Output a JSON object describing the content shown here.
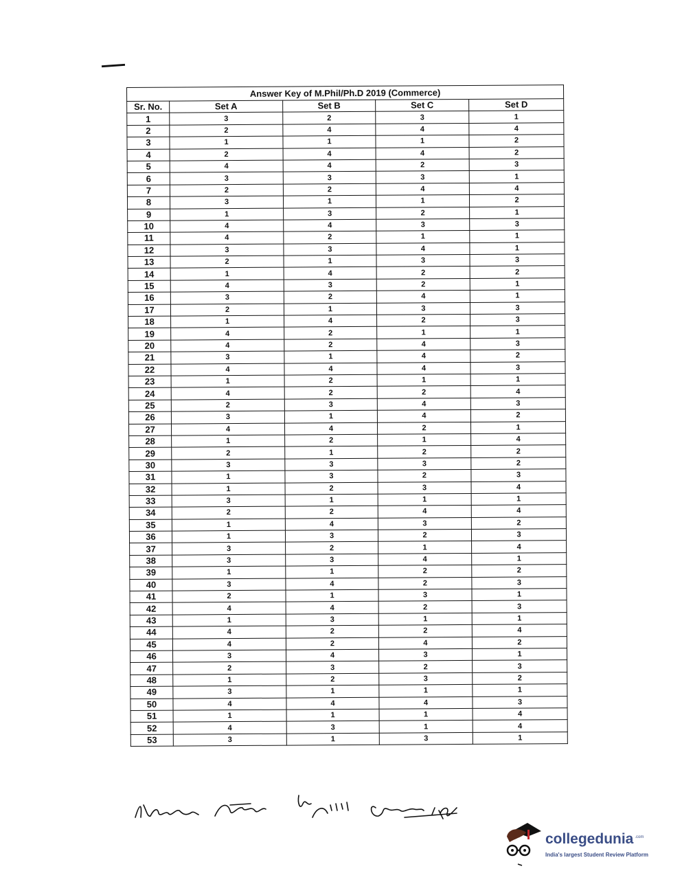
{
  "document": {
    "title": "Answer Key of M.Phil/Ph.D 2019 (Commerce)",
    "columns": [
      "Sr. No.",
      "Set A",
      "Set B",
      "Set C",
      "Set D"
    ],
    "rows": [
      [
        1,
        3,
        2,
        3,
        1
      ],
      [
        2,
        2,
        4,
        4,
        4
      ],
      [
        3,
        1,
        1,
        1,
        2
      ],
      [
        4,
        2,
        4,
        4,
        2
      ],
      [
        5,
        4,
        4,
        2,
        3
      ],
      [
        6,
        3,
        3,
        3,
        1
      ],
      [
        7,
        2,
        2,
        4,
        4
      ],
      [
        8,
        3,
        1,
        1,
        2
      ],
      [
        9,
        1,
        3,
        2,
        1
      ],
      [
        10,
        4,
        4,
        3,
        3
      ],
      [
        11,
        4,
        2,
        1,
        1
      ],
      [
        12,
        3,
        3,
        4,
        1
      ],
      [
        13,
        2,
        1,
        3,
        3
      ],
      [
        14,
        1,
        4,
        2,
        2
      ],
      [
        15,
        4,
        3,
        2,
        1
      ],
      [
        16,
        3,
        2,
        4,
        1
      ],
      [
        17,
        2,
        1,
        3,
        3
      ],
      [
        18,
        1,
        4,
        2,
        3
      ],
      [
        19,
        4,
        2,
        1,
        1
      ],
      [
        20,
        4,
        2,
        4,
        3
      ],
      [
        21,
        3,
        1,
        4,
        2
      ],
      [
        22,
        4,
        4,
        4,
        3
      ],
      [
        23,
        1,
        2,
        1,
        1
      ],
      [
        24,
        4,
        2,
        2,
        4
      ],
      [
        25,
        2,
        3,
        4,
        3
      ],
      [
        26,
        3,
        1,
        4,
        2
      ],
      [
        27,
        4,
        4,
        2,
        1
      ],
      [
        28,
        1,
        2,
        1,
        4
      ],
      [
        29,
        2,
        1,
        2,
        2
      ],
      [
        30,
        3,
        3,
        3,
        2
      ],
      [
        31,
        1,
        3,
        2,
        3
      ],
      [
        32,
        1,
        2,
        3,
        4
      ],
      [
        33,
        3,
        1,
        1,
        1
      ],
      [
        34,
        2,
        2,
        4,
        4
      ],
      [
        35,
        1,
        4,
        3,
        2
      ],
      [
        36,
        1,
        3,
        2,
        3
      ],
      [
        37,
        3,
        2,
        1,
        4
      ],
      [
        38,
        3,
        3,
        4,
        1
      ],
      [
        39,
        1,
        1,
        2,
        2
      ],
      [
        40,
        3,
        4,
        2,
        3
      ],
      [
        41,
        2,
        1,
        3,
        1
      ],
      [
        42,
        4,
        4,
        2,
        3
      ],
      [
        43,
        1,
        3,
        1,
        1
      ],
      [
        44,
        4,
        2,
        2,
        4
      ],
      [
        45,
        4,
        2,
        4,
        2
      ],
      [
        46,
        3,
        4,
        3,
        1
      ],
      [
        47,
        2,
        3,
        2,
        3
      ],
      [
        48,
        1,
        2,
        3,
        2
      ],
      [
        49,
        3,
        1,
        1,
        1
      ],
      [
        50,
        4,
        4,
        4,
        3
      ],
      [
        51,
        1,
        1,
        1,
        4
      ],
      [
        52,
        4,
        3,
        1,
        4
      ],
      [
        53,
        3,
        1,
        3,
        1
      ]
    ]
  },
  "logo": {
    "name": "collegedunia",
    "suffix": ".com",
    "tagline": "India's largest Student Review Platform",
    "color": "#3a4d86"
  }
}
